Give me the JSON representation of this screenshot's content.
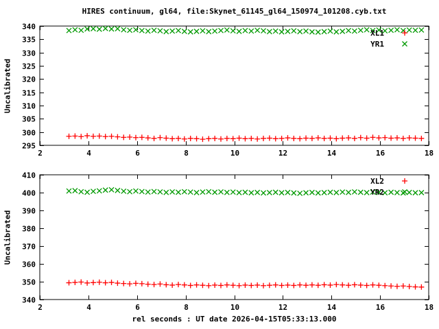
{
  "figure": {
    "title": "HIRES continuum, gl64, file:Skynet_61145_gl64_150974_101208.cyb.txt",
    "xlabel": "rel seconds : UT date 2026-04-15T05:33:13.000",
    "ylabel_top": "Uncalibrated",
    "ylabel_bottom": "Uncalibrated"
  },
  "colors": {
    "series_red": "#ff0000",
    "series_green": "#009900",
    "frame": "#000000",
    "background": "#ffffff"
  },
  "chart_data": [
    {
      "type": "scatter",
      "panel": "top",
      "ylabel": "Uncalibrated",
      "xlim": [
        2,
        18
      ],
      "ylim": [
        295,
        340
      ],
      "xticks": [
        2,
        4,
        6,
        8,
        10,
        12,
        14,
        16,
        18
      ],
      "yticks": [
        295,
        300,
        305,
        310,
        315,
        320,
        325,
        330,
        335,
        340
      ],
      "grid": false,
      "legend_position": "top-right",
      "x": [
        3.2,
        3.45,
        3.7,
        3.95,
        4.2,
        4.45,
        4.7,
        4.95,
        5.2,
        5.45,
        5.7,
        5.95,
        6.2,
        6.45,
        6.7,
        6.95,
        7.2,
        7.45,
        7.7,
        7.95,
        8.2,
        8.45,
        8.7,
        8.95,
        9.2,
        9.45,
        9.7,
        9.95,
        10.2,
        10.45,
        10.7,
        10.95,
        11.2,
        11.45,
        11.7,
        11.95,
        12.2,
        12.45,
        12.7,
        12.95,
        13.2,
        13.45,
        13.7,
        13.95,
        14.2,
        14.45,
        14.7,
        14.95,
        15.2,
        15.45,
        15.7,
        15.95,
        16.2,
        16.45,
        16.7,
        16.95,
        17.2,
        17.45,
        17.7
      ],
      "series": [
        {
          "name": "XL1",
          "marker": "plus",
          "color": "#ff0000",
          "values": [
            298.4,
            298.5,
            298.3,
            298.6,
            298.4,
            298.5,
            298.3,
            298.4,
            298.2,
            298.0,
            298.1,
            297.9,
            298.0,
            297.8,
            297.6,
            297.9,
            297.7,
            297.5,
            297.6,
            297.4,
            297.6,
            297.5,
            297.3,
            297.5,
            297.6,
            297.4,
            297.6,
            297.5,
            297.7,
            297.5,
            297.6,
            297.4,
            297.6,
            297.7,
            297.5,
            297.6,
            297.8,
            297.6,
            297.5,
            297.7,
            297.6,
            297.8,
            297.6,
            297.7,
            297.5,
            297.7,
            297.8,
            297.6,
            297.9,
            297.7,
            298.0,
            297.8,
            297.9,
            297.7,
            297.8,
            297.6,
            297.8,
            297.7,
            297.6
          ]
        },
        {
          "name": "YR1",
          "marker": "cross",
          "color": "#009900",
          "values": [
            338.3,
            338.6,
            338.4,
            338.9,
            339.0,
            338.8,
            339.1,
            338.9,
            339.0,
            338.6,
            338.4,
            338.6,
            338.3,
            338.1,
            338.4,
            338.2,
            337.9,
            338.1,
            338.3,
            338.0,
            337.8,
            338.0,
            338.2,
            337.9,
            338.1,
            338.3,
            338.5,
            338.2,
            338.0,
            338.3,
            338.1,
            338.4,
            338.2,
            337.9,
            338.1,
            337.8,
            338.0,
            338.2,
            337.9,
            338.1,
            337.8,
            337.7,
            337.9,
            338.1,
            337.8,
            338.0,
            338.3,
            338.1,
            338.4,
            338.6,
            338.3,
            338.5,
            338.2,
            338.4,
            338.6,
            338.3,
            338.5,
            338.4,
            338.5
          ]
        }
      ]
    },
    {
      "type": "scatter",
      "panel": "bottom",
      "ylabel": "Uncalibrated",
      "xlim": [
        2,
        18
      ],
      "ylim": [
        340,
        410
      ],
      "xticks": [
        2,
        4,
        6,
        8,
        10,
        12,
        14,
        16,
        18
      ],
      "yticks": [
        340,
        350,
        360,
        370,
        380,
        390,
        400,
        410
      ],
      "grid": false,
      "legend_position": "top-right",
      "x": [
        3.2,
        3.45,
        3.7,
        3.95,
        4.2,
        4.45,
        4.7,
        4.95,
        5.2,
        5.45,
        5.7,
        5.95,
        6.2,
        6.45,
        6.7,
        6.95,
        7.2,
        7.45,
        7.7,
        7.95,
        8.2,
        8.45,
        8.7,
        8.95,
        9.2,
        9.45,
        9.7,
        9.95,
        10.2,
        10.45,
        10.7,
        10.95,
        11.2,
        11.45,
        11.7,
        11.95,
        12.2,
        12.45,
        12.7,
        12.95,
        13.2,
        13.45,
        13.7,
        13.95,
        14.2,
        14.45,
        14.7,
        14.95,
        15.2,
        15.45,
        15.7,
        15.95,
        16.2,
        16.45,
        16.7,
        16.95,
        17.2,
        17.45,
        17.7
      ],
      "series": [
        {
          "name": "XL2",
          "marker": "plus",
          "color": "#ff0000",
          "values": [
            349.4,
            349.6,
            349.8,
            349.3,
            349.5,
            349.7,
            349.4,
            349.6,
            349.2,
            349.0,
            348.8,
            349.1,
            348.9,
            348.6,
            348.4,
            348.7,
            348.3,
            348.1,
            348.4,
            348.2,
            347.9,
            348.2,
            348.0,
            347.8,
            348.1,
            347.9,
            348.2,
            348.0,
            347.8,
            348.1,
            347.9,
            348.1,
            347.8,
            348.0,
            348.2,
            347.9,
            348.1,
            347.9,
            348.2,
            348.0,
            348.2,
            348.0,
            348.3,
            348.1,
            348.4,
            348.2,
            348.0,
            348.3,
            348.1,
            347.9,
            348.2,
            348.0,
            347.8,
            347.6,
            347.4,
            347.6,
            347.3,
            347.1,
            347.0
          ]
        },
        {
          "name": "YR2",
          "marker": "cross",
          "color": "#009900",
          "values": [
            400.9,
            401.1,
            400.5,
            400.2,
            400.7,
            401.0,
            401.4,
            401.6,
            401.2,
            400.8,
            400.5,
            400.9,
            400.6,
            400.3,
            400.6,
            400.4,
            400.1,
            400.4,
            400.2,
            400.5,
            400.3,
            400.0,
            400.3,
            400.5,
            400.2,
            400.4,
            400.1,
            400.3,
            400.0,
            400.2,
            399.9,
            400.1,
            399.8,
            400.0,
            400.2,
            399.9,
            400.1,
            399.8,
            399.6,
            399.9,
            400.1,
            399.8,
            400.0,
            400.2,
            400.0,
            400.3,
            400.1,
            400.4,
            400.2,
            400.0,
            400.3,
            400.1,
            399.9,
            400.2,
            400.0,
            399.8,
            400.1,
            399.9,
            400.0
          ]
        }
      ]
    }
  ]
}
